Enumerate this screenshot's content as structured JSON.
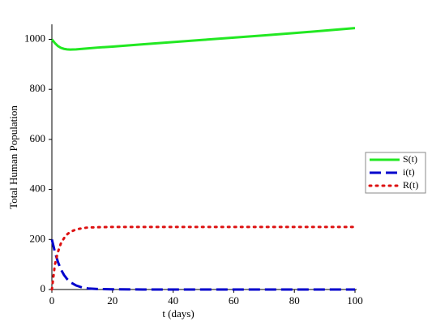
{
  "chart_data": {
    "type": "line",
    "x_label": "t (days)",
    "y_label": "Total Human Population",
    "x": [
      0,
      1,
      2,
      3,
      4,
      5,
      6,
      8,
      10,
      12,
      15,
      20,
      30,
      40,
      50,
      60,
      70,
      80,
      90,
      100
    ],
    "series": [
      {
        "name": "S(t)",
        "color": "#22e822",
        "style": "solid",
        "values": [
          1000,
          985,
          973,
          966,
          962,
          960,
          959,
          960,
          962,
          964,
          967,
          971,
          980,
          989,
          998,
          1007,
          1016,
          1025,
          1035,
          1045
        ]
      },
      {
        "name": "i(t)",
        "color": "#0000cc",
        "style": "dash",
        "values": [
          200,
          150,
          110,
          80,
          58,
          42,
          30,
          16,
          8,
          4,
          2,
          1,
          0,
          0,
          0,
          0,
          0,
          0,
          0,
          0
        ]
      },
      {
        "name": "R(t)",
        "color": "#dd1111",
        "style": "dot",
        "values": [
          0,
          100,
          150,
          185,
          205,
          220,
          230,
          240,
          245,
          248,
          249,
          250,
          250,
          250,
          250,
          250,
          250,
          250,
          250,
          250
        ]
      }
    ],
    "xlim": [
      0,
      100
    ],
    "xticks": [
      0,
      20,
      40,
      60,
      80,
      100
    ],
    "ylim": [
      0,
      1060
    ],
    "yticks": [
      0,
      200,
      400,
      600,
      800,
      1000
    ],
    "grid": false,
    "legend": "right"
  }
}
